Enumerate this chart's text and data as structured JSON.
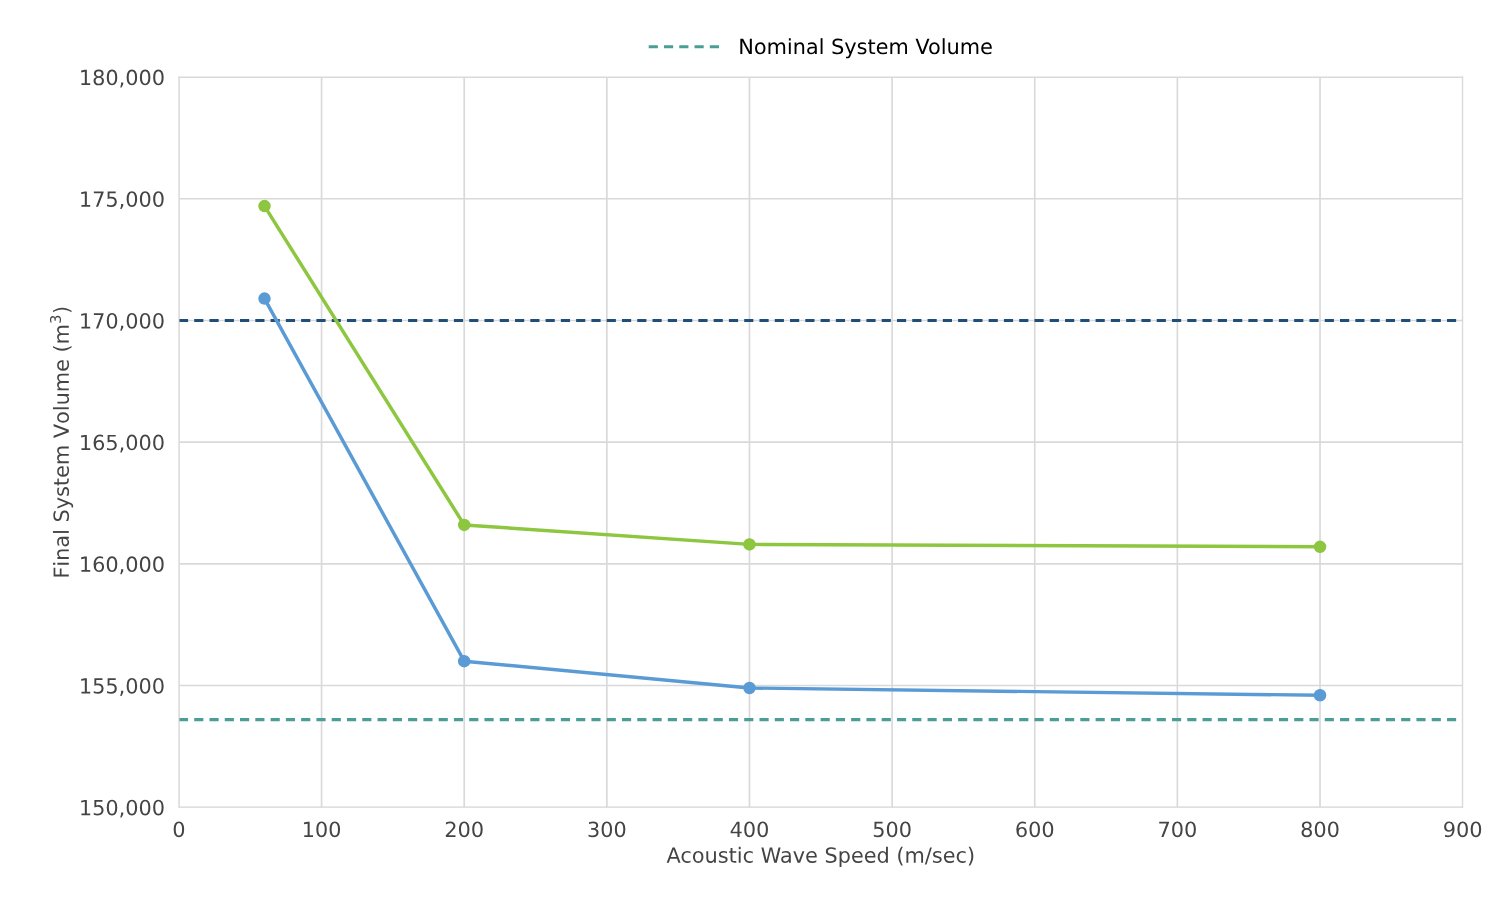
{
  "chart_data": {
    "type": "line",
    "xlabel": "Acoustic Wave Speed (m/sec)",
    "ylabel": "Final System Volume (m$^{3}$)",
    "series": [
      {
        "color": "#5b9bd5",
        "x": [
          60,
          200,
          400,
          800
        ],
        "values": [
          170900,
          156000,
          154900,
          154600
        ]
      },
      {
        "color": "#8dc63f",
        "x": [
          60,
          200,
          400,
          800
        ],
        "values": [
          174700,
          161600,
          160800,
          160700
        ]
      }
    ],
    "ref_lines": [
      {
        "axis": "y",
        "value": 153600,
        "label": "Nominal System Volume",
        "color": "#4a9e96",
        "line_style": "dashed"
      },
      {
        "axis": "y",
        "value": 170000,
        "color": "#1f4e79",
        "line_style": "dashed"
      }
    ],
    "xlim": [
      0,
      900
    ],
    "xticks": [
      0,
      100,
      200,
      300,
      400,
      500,
      600,
      700,
      800,
      900
    ],
    "ylim": [
      150000,
      180000
    ],
    "yticks": [
      {
        "value": 150000,
        "label": "150,000"
      },
      {
        "value": 155000,
        "label": "155,000"
      },
      {
        "value": 160000,
        "label": "160,000"
      },
      {
        "value": 165000,
        "label": "165,000"
      },
      {
        "value": 170000,
        "label": "170,000"
      },
      {
        "value": 175000,
        "label": "175,000"
      },
      {
        "value": 180000,
        "label": "180,000"
      }
    ],
    "grid": true,
    "legend": "top",
    "marker": "circle",
    "line_style": "solid"
  }
}
